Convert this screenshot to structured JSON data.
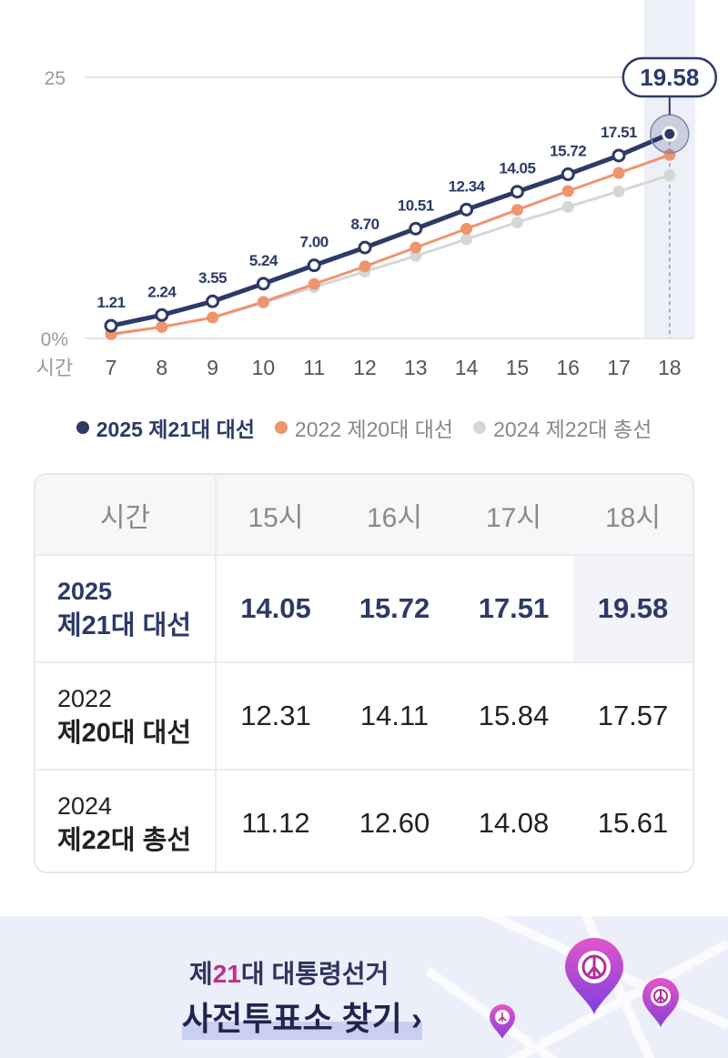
{
  "chart_data": {
    "type": "line",
    "x": [
      7,
      8,
      9,
      10,
      11,
      12,
      13,
      14,
      15,
      16,
      17,
      18
    ],
    "x_axis_label": "시간",
    "y_ticks": [
      "25",
      "0%"
    ],
    "ylim": [
      0,
      25
    ],
    "grid": true,
    "series": [
      {
        "name": "2025 제21대 대선",
        "color": "#2c3a67",
        "values": [
          1.21,
          2.24,
          3.55,
          5.24,
          7.0,
          8.7,
          10.51,
          12.34,
          14.05,
          15.72,
          17.51,
          19.58
        ],
        "labels": [
          "1.21",
          "2.24",
          "3.55",
          "5.24",
          "7.00",
          "8.70",
          "10.51",
          "12.34",
          "14.05",
          "15.72",
          "17.51",
          "19.58"
        ]
      },
      {
        "name": "2022 제20대 대선",
        "color": "#f0946e",
        "values": [
          0.4,
          1.1,
          2.0,
          3.5,
          5.2,
          6.9,
          8.7,
          10.5,
          12.31,
          14.11,
          15.84,
          17.57
        ]
      },
      {
        "name": "2024 제22대 총선",
        "color": "#d6d6d6",
        "values": [
          0.4,
          1.1,
          2.0,
          3.4,
          4.9,
          6.4,
          7.9,
          9.5,
          11.12,
          12.6,
          14.08,
          15.61
        ]
      }
    ],
    "highlight_x": 18,
    "legend_position": "bottom"
  },
  "legend": [
    {
      "label": "2025 제21대 대선",
      "color": "#2c3a67"
    },
    {
      "label": "2022 제20대 대선",
      "color": "#f0946e"
    },
    {
      "label": "2024 제22대 총선",
      "color": "#d6d6d6"
    }
  ],
  "table": {
    "header": [
      "시간",
      "15시",
      "16시",
      "17시",
      "18시"
    ],
    "rows": [
      {
        "year": "2025",
        "name": "제21대 대선",
        "values": [
          "14.05",
          "15.72",
          "17.51",
          "19.58"
        ]
      },
      {
        "year": "2022",
        "name": "제20대 대선",
        "values": [
          "12.31",
          "14.11",
          "15.84",
          "17.57"
        ]
      },
      {
        "year": "2024",
        "name": "제22대 총선",
        "values": [
          "11.12",
          "12.60",
          "14.08",
          "15.61"
        ]
      }
    ]
  },
  "banner": {
    "subtitle_prefix": "제",
    "subtitle_number": "21",
    "subtitle_suffix": "대 대통령선거",
    "title": "사전투표소 찾기",
    "arrow": "›"
  },
  "colors": {
    "primary": "#2c3a67",
    "secondary": "#f0946e",
    "tertiary": "#d6d6d6",
    "highlight_band": "#eef0f7",
    "pin": "#d447b4"
  }
}
